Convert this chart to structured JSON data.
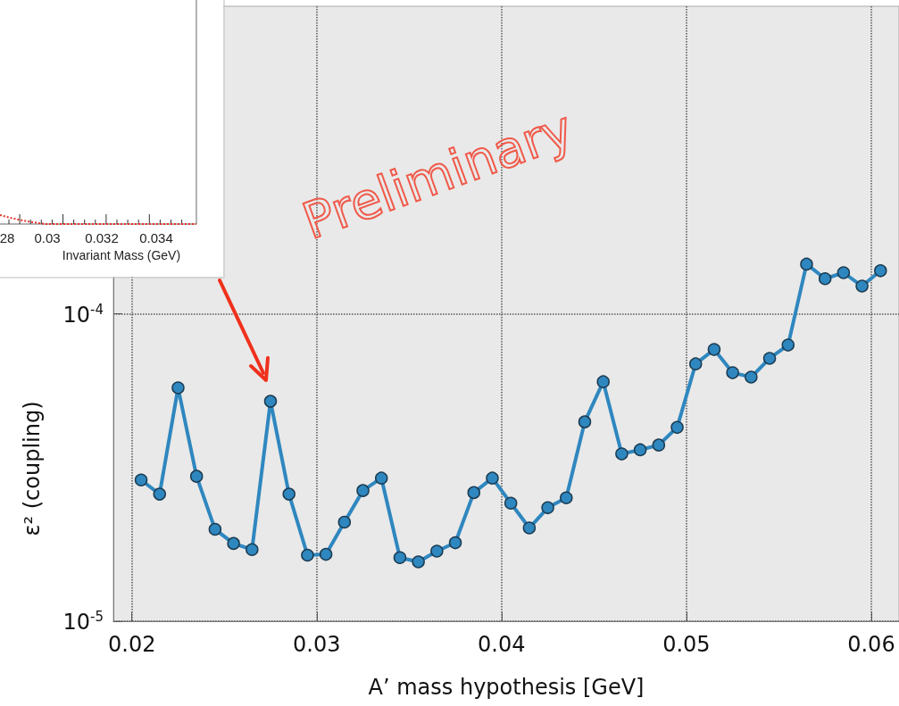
{
  "chart_data": {
    "type": "line",
    "xlabel": "A’ mass hypothesis [GeV]",
    "ylabel": "ε² (coupling)",
    "x": [
      0.0205,
      0.0215,
      0.0225,
      0.0235,
      0.0245,
      0.0255,
      0.0265,
      0.0275,
      0.0285,
      0.0295,
      0.0305,
      0.0315,
      0.0325,
      0.0335,
      0.0345,
      0.0355,
      0.0365,
      0.0375,
      0.0385,
      0.0395,
      0.0405,
      0.0415,
      0.0425,
      0.0435,
      0.0445,
      0.0455,
      0.0465,
      0.0475,
      0.0485,
      0.0495,
      0.0505,
      0.0515,
      0.0525,
      0.0535,
      0.0545,
      0.0555,
      0.0565,
      0.0575,
      0.0585,
      0.0595,
      0.0605
    ],
    "series": [
      {
        "color": "#2f87bf",
        "values": [
          2.88e-05,
          2.59e-05,
          5.74e-05,
          2.96e-05,
          1.99e-05,
          1.79e-05,
          1.71e-05,
          5.19e-05,
          2.59e-05,
          1.64e-05,
          1.65e-05,
          2.1e-05,
          2.66e-05,
          2.92e-05,
          1.61e-05,
          1.56e-05,
          1.69e-05,
          1.8e-05,
          2.62e-05,
          2.92e-05,
          2.42e-05,
          2.01e-05,
          2.34e-05,
          2.52e-05,
          4.45e-05,
          6.01e-05,
          3.5e-05,
          3.61e-05,
          3.74e-05,
          4.27e-05,
          6.87e-05,
          7.65e-05,
          6.43e-05,
          6.22e-05,
          7.16e-05,
          7.91e-05,
          0.000145,
          0.00013,
          0.000136,
          0.000123,
          0.000138
        ]
      }
    ],
    "xlim": [
      0.019,
      0.0615
    ],
    "xticks": [
      0.02,
      0.03,
      0.04,
      0.05,
      0.06
    ],
    "ylim": [
      1e-05,
      0.001
    ],
    "yticks": [
      {
        "value": 1e-05,
        "label": "10$^{-5}$"
      },
      {
        "value": 0.0001,
        "label": "10$^{-4}$"
      }
    ],
    "log": "y",
    "grid": true,
    "marker": "circle",
    "line_style": "solid",
    "annotations": [
      "Preliminary",
      "28",
      "0.03",
      "0.032",
      "0.034",
      "Invariant Mass (GeV)"
    ]
  }
}
